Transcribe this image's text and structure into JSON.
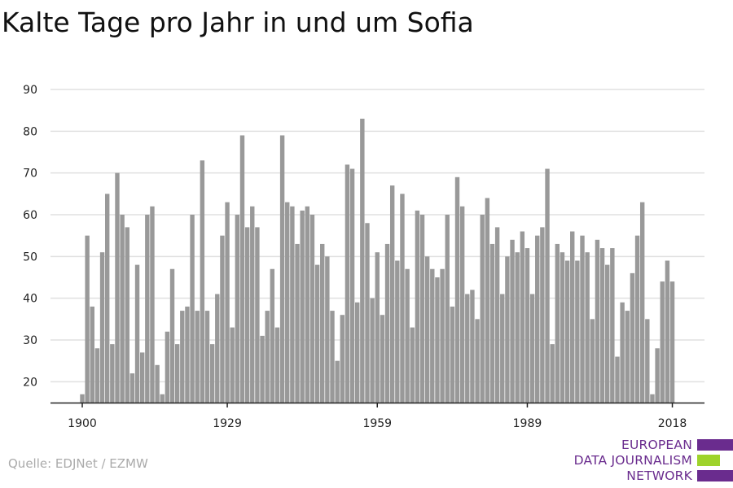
{
  "chart_data": {
    "type": "bar",
    "title": "Kalte Tage pro Jahr in und um Sofia",
    "xlabel": "",
    "ylabel": "",
    "ylim": [
      15,
      90
    ],
    "yticks": [
      20,
      30,
      40,
      50,
      60,
      70,
      80,
      90
    ],
    "xticks": [
      1900,
      1929,
      1959,
      1989,
      2018
    ],
    "grid": true,
    "bar_color": "#999999",
    "x_start": 1900,
    "values": [
      17,
      55,
      38,
      28,
      51,
      65,
      29,
      70,
      60,
      57,
      22,
      48,
      27,
      60,
      62,
      24,
      17,
      32,
      47,
      29,
      37,
      38,
      60,
      37,
      73,
      37,
      29,
      41,
      55,
      63,
      33,
      60,
      79,
      57,
      62,
      57,
      31,
      37,
      47,
      33,
      79,
      63,
      62,
      53,
      61,
      62,
      60,
      48,
      53,
      50,
      37,
      25,
      36,
      72,
      71,
      39,
      83,
      58,
      40,
      51,
      36,
      53,
      67,
      49,
      65,
      47,
      33,
      61,
      60,
      50,
      47,
      45,
      47,
      60,
      38,
      69,
      62,
      41,
      42,
      35,
      60,
      64,
      53,
      57,
      41,
      50,
      54,
      51,
      56,
      52,
      41,
      55,
      57,
      71,
      29,
      53,
      51,
      49,
      56,
      49,
      55,
      51,
      35,
      54,
      52,
      48,
      52,
      26,
      39,
      37,
      46,
      55,
      63,
      35,
      17,
      28,
      44,
      49,
      44
    ]
  },
  "source": "Quelle: EDJNet / EZMW",
  "logo": {
    "lines": [
      "EUROPEAN",
      "DATA JOURNALISM",
      "NETWORK"
    ],
    "colors": {
      "purple": "#6a2c8e",
      "green": "#9ed32b"
    }
  }
}
